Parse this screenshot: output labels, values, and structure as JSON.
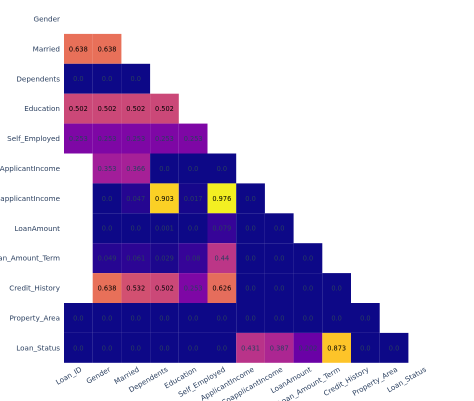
{
  "chart_data": {
    "type": "heatmap",
    "rows": [
      "Gender",
      "Married",
      "Dependents",
      "Education",
      "Self_Employed",
      "ApplicantIncome",
      "CoapplicantIncome",
      "LoanAmount",
      "Loan_Amount_Term",
      "Credit_History",
      "Property_Area",
      "Loan_Status"
    ],
    "columns": [
      "Loan_ID",
      "Gender",
      "Married",
      "Dependents",
      "Education",
      "Self_Employed",
      "ApplicantIncome",
      "CoapplicantIncome",
      "LoanAmount",
      "Loan_Amount_Term",
      "Credit_History",
      "Property_Area",
      "Loan_Status"
    ],
    "values": [
      [],
      [
        0.638,
        0.638
      ],
      [
        0.0,
        0.0,
        0.0
      ],
      [
        0.502,
        0.502,
        0.502,
        0.502
      ],
      [
        0.253,
        0.253,
        0.253,
        0.253,
        0.253
      ],
      [
        null,
        0.353,
        0.366,
        0.0,
        0.0,
        0.0
      ],
      [
        null,
        0.0,
        0.047,
        0.903,
        0.017,
        0.976,
        0.0
      ],
      [
        null,
        0.0,
        0.0,
        0.001,
        0.0,
        0.079,
        0.0,
        0.0
      ],
      [
        null,
        0.049,
        0.061,
        0.029,
        0.08,
        0.44,
        0.0,
        0.0,
        0.0
      ],
      [
        null,
        0.638,
        0.532,
        0.502,
        0.253,
        0.626,
        0.0,
        0.0,
        0.0,
        0.0
      ],
      [
        0.0,
        0.0,
        0.0,
        0.0,
        0.0,
        0.0,
        0.0,
        0.0,
        0.0,
        0.0,
        0.0
      ],
      [
        0.0,
        0.0,
        0.0,
        0.0,
        0.0,
        0.0,
        0.431,
        0.387,
        0.202,
        0.873,
        0.0,
        0.0
      ]
    ],
    "colorscale": [
      "#0d0887",
      "#46039f",
      "#7201a8",
      "#9c179e",
      "#bd3786",
      "#d8576b",
      "#ed7953",
      "#fb9f3a",
      "#fdca26",
      "#f0f921"
    ],
    "value_range": [
      0,
      1
    ]
  }
}
